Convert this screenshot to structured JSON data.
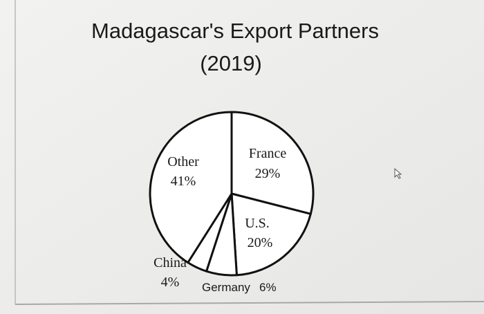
{
  "chart_data": {
    "type": "pie",
    "title": "Madagascar's Export Partners",
    "subtitle": "(2019)",
    "categories": [
      "France",
      "U.S.",
      "Germany",
      "China",
      "Other"
    ],
    "values": [
      29,
      20,
      6,
      4,
      41
    ],
    "value_labels": [
      "29%",
      "20%",
      "6%",
      "4%",
      "41%"
    ],
    "color": "#ffffff",
    "edge_color": "#111111"
  }
}
